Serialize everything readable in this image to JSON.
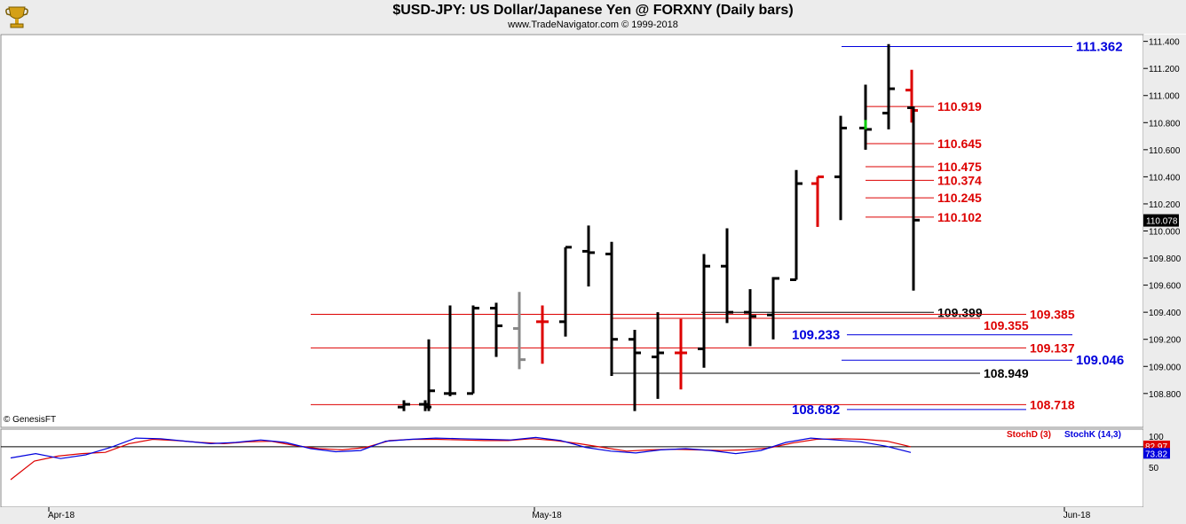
{
  "header": {
    "title": "$USD-JPY:  US Dollar/Japanese Yen @ FORXNY  (Daily bars)",
    "subtitle": "www.TradeNavigator.com © 1999-2018",
    "logo_icon": "trophy-logo-icon"
  },
  "copyright": "© GenesisFT",
  "colors": {
    "blue": "#0000dd",
    "red": "#dd0000",
    "black": "#000000",
    "green": "#00cc00",
    "gray": "#888888",
    "panel_bg": "#ececec"
  },
  "chart_data": [
    {
      "type": "ohlc",
      "ylim": [
        108.55,
        111.45
      ],
      "y_ticks": [
        "111.400",
        "111.200",
        "111.000",
        "110.800",
        "110.600",
        "110.400",
        "110.200",
        "110.000",
        "109.800",
        "109.600",
        "109.400",
        "109.200",
        "109.000",
        "108.800"
      ],
      "last_price": "110.078",
      "bars": [
        {
          "high": 108.75,
          "low": 108.67,
          "open": 108.7,
          "close": 108.72,
          "color": "black"
        },
        {
          "high": 108.75,
          "low": 108.67,
          "open": 108.72,
          "close": 108.7,
          "color": "black"
        },
        {
          "high": 109.2,
          "low": 108.67,
          "open": 108.72,
          "close": 108.82,
          "color": "black"
        },
        {
          "high": 109.45,
          "low": 108.78,
          "open": 108.8,
          "close": 108.8,
          "color": "black"
        },
        {
          "high": 109.45,
          "low": 108.8,
          "open": 108.8,
          "close": 109.43,
          "color": "black"
        },
        {
          "high": 109.47,
          "low": 109.07,
          "open": 109.43,
          "close": 109.3,
          "color": "black"
        },
        {
          "high": 109.55,
          "low": 108.98,
          "open": 109.28,
          "close": 109.05,
          "color": "gray"
        },
        {
          "high": 109.45,
          "low": 109.02,
          "open": 109.33,
          "close": 109.33,
          "color": "red"
        },
        {
          "high": 109.88,
          "low": 109.22,
          "open": 109.33,
          "close": 109.88,
          "color": "black"
        },
        {
          "high": 110.04,
          "low": 109.59,
          "open": 109.85,
          "close": 109.84,
          "color": "black"
        },
        {
          "high": 109.92,
          "low": 108.93,
          "open": 109.83,
          "close": 109.2,
          "color": "black"
        },
        {
          "high": 109.27,
          "low": 108.67,
          "open": 109.2,
          "close": 109.1,
          "color": "black"
        },
        {
          "high": 109.4,
          "low": 108.76,
          "open": 109.07,
          "close": 109.1,
          "color": "black"
        },
        {
          "high": 109.35,
          "low": 108.83,
          "open": 109.1,
          "close": 109.1,
          "color": "red"
        },
        {
          "high": 109.83,
          "low": 108.99,
          "open": 109.13,
          "close": 109.74,
          "color": "black"
        },
        {
          "high": 110.02,
          "low": 109.32,
          "open": 109.74,
          "close": 109.4,
          "color": "black"
        },
        {
          "high": 109.57,
          "low": 109.15,
          "open": 109.4,
          "close": 109.37,
          "color": "black"
        },
        {
          "high": 109.66,
          "low": 109.2,
          "open": 109.38,
          "close": 109.65,
          "color": "black"
        },
        {
          "high": 110.45,
          "low": 109.64,
          "open": 109.64,
          "close": 110.35,
          "color": "black"
        },
        {
          "high": 110.4,
          "low": 110.03,
          "open": 110.35,
          "close": 110.4,
          "color": "red"
        },
        {
          "high": 110.85,
          "low": 110.08,
          "open": 110.4,
          "close": 110.76,
          "color": "black"
        },
        {
          "high": 111.08,
          "low": 110.6,
          "open": 110.76,
          "close": 110.75,
          "color": "black"
        },
        {
          "high": 111.38,
          "low": 110.75,
          "open": 110.87,
          "close": 111.05,
          "color": "black"
        },
        {
          "high": 111.19,
          "low": 110.8,
          "open": 111.04,
          "close": 110.89,
          "color": "red"
        },
        {
          "high": 110.92,
          "low": 109.56,
          "open": 110.91,
          "close": 110.08,
          "color": "black"
        }
      ],
      "levels": [
        {
          "value": 111.362,
          "label": "111.362",
          "color": "blue"
        },
        {
          "value": 110.919,
          "label": "110.919",
          "color": "red"
        },
        {
          "value": 110.645,
          "label": "110.645",
          "color": "red"
        },
        {
          "value": 110.475,
          "label": "110.475",
          "color": "red"
        },
        {
          "value": 110.374,
          "label": "110.374",
          "color": "red"
        },
        {
          "value": 110.245,
          "label": "110.245",
          "color": "red"
        },
        {
          "value": 110.102,
          "label": "110.102",
          "color": "red"
        },
        {
          "value": 109.399,
          "label": "109.399",
          "color": "black"
        },
        {
          "value": 109.385,
          "label": "109.385",
          "color": "red"
        },
        {
          "value": 109.355,
          "label": "109.355",
          "color": "red"
        },
        {
          "value": 109.233,
          "label": "109.233",
          "color": "blue"
        },
        {
          "value": 109.137,
          "label": "109.137",
          "color": "red"
        },
        {
          "value": 109.046,
          "label": "109.046",
          "color": "blue"
        },
        {
          "value": 108.949,
          "label": "108.949",
          "color": "black"
        },
        {
          "value": 108.718,
          "label": "108.718",
          "color": "red"
        },
        {
          "value": 108.682,
          "label": "108.682",
          "color": "blue"
        }
      ]
    },
    {
      "type": "line",
      "ylim": [
        0,
        100
      ],
      "y_ticks": [
        "100",
        "50"
      ],
      "legend": [
        "StochD (3)",
        "StochK (14,3)"
      ],
      "readouts": [
        "82.97",
        "73.82"
      ],
      "reference_value": 82.97,
      "series": [
        {
          "name": "StochD (3)",
          "color": "red",
          "values": [
            30,
            60,
            68,
            72,
            74,
            88,
            95,
            93,
            90,
            88,
            91,
            92,
            85,
            80,
            78,
            82,
            93,
            95,
            95,
            94,
            93,
            93,
            96,
            93,
            88,
            82,
            76,
            78,
            79,
            78,
            77,
            78,
            81,
            89,
            95,
            96,
            95,
            92,
            82.97
          ]
        },
        {
          "name": "StochK (14,3)",
          "color": "blue",
          "values": [
            65,
            72,
            64,
            70,
            82,
            97,
            96,
            92,
            88,
            90,
            94,
            90,
            80,
            75,
            77,
            92,
            95,
            97,
            96,
            95,
            94,
            98,
            93,
            82,
            76,
            73,
            78,
            80,
            77,
            72,
            77,
            90,
            97,
            94,
            91,
            84,
            73.82
          ]
        }
      ]
    }
  ],
  "x_axis": {
    "ticks": [
      "Apr-18",
      "May-18",
      "Jun-18"
    ]
  }
}
